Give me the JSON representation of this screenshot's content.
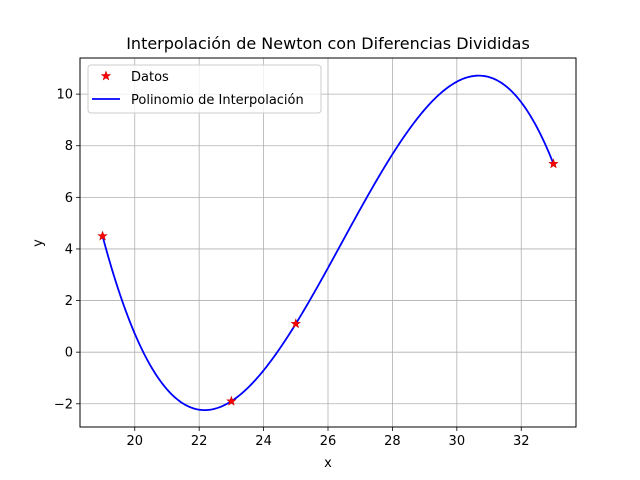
{
  "chart_data": {
    "type": "line",
    "title": "Interpolación de Newton con Diferencias Divididas",
    "xlabel": "x",
    "ylabel": "y",
    "xlim": [
      18.3,
      33.7
    ],
    "ylim": [
      -2.9,
      11.4
    ],
    "xticks": [
      20,
      22,
      24,
      26,
      28,
      30,
      32
    ],
    "yticks": [
      -2,
      0,
      2,
      4,
      6,
      8,
      10
    ],
    "grid": true,
    "legend_position": "top-left",
    "series": [
      {
        "name": "Datos",
        "kind": "markers",
        "marker": "star",
        "color": "#ff0000",
        "edge_color": "#cc0000",
        "points": [
          {
            "x": 19,
            "y": 4.5
          },
          {
            "x": 23,
            "y": -1.9
          },
          {
            "x": 25,
            "y": 1.1
          },
          {
            "x": 33,
            "y": 7.3
          }
        ]
      },
      {
        "name": "Polinomio de Interpolación",
        "kind": "line",
        "color": "#0000ff",
        "interpolates": "Datos"
      }
    ]
  }
}
